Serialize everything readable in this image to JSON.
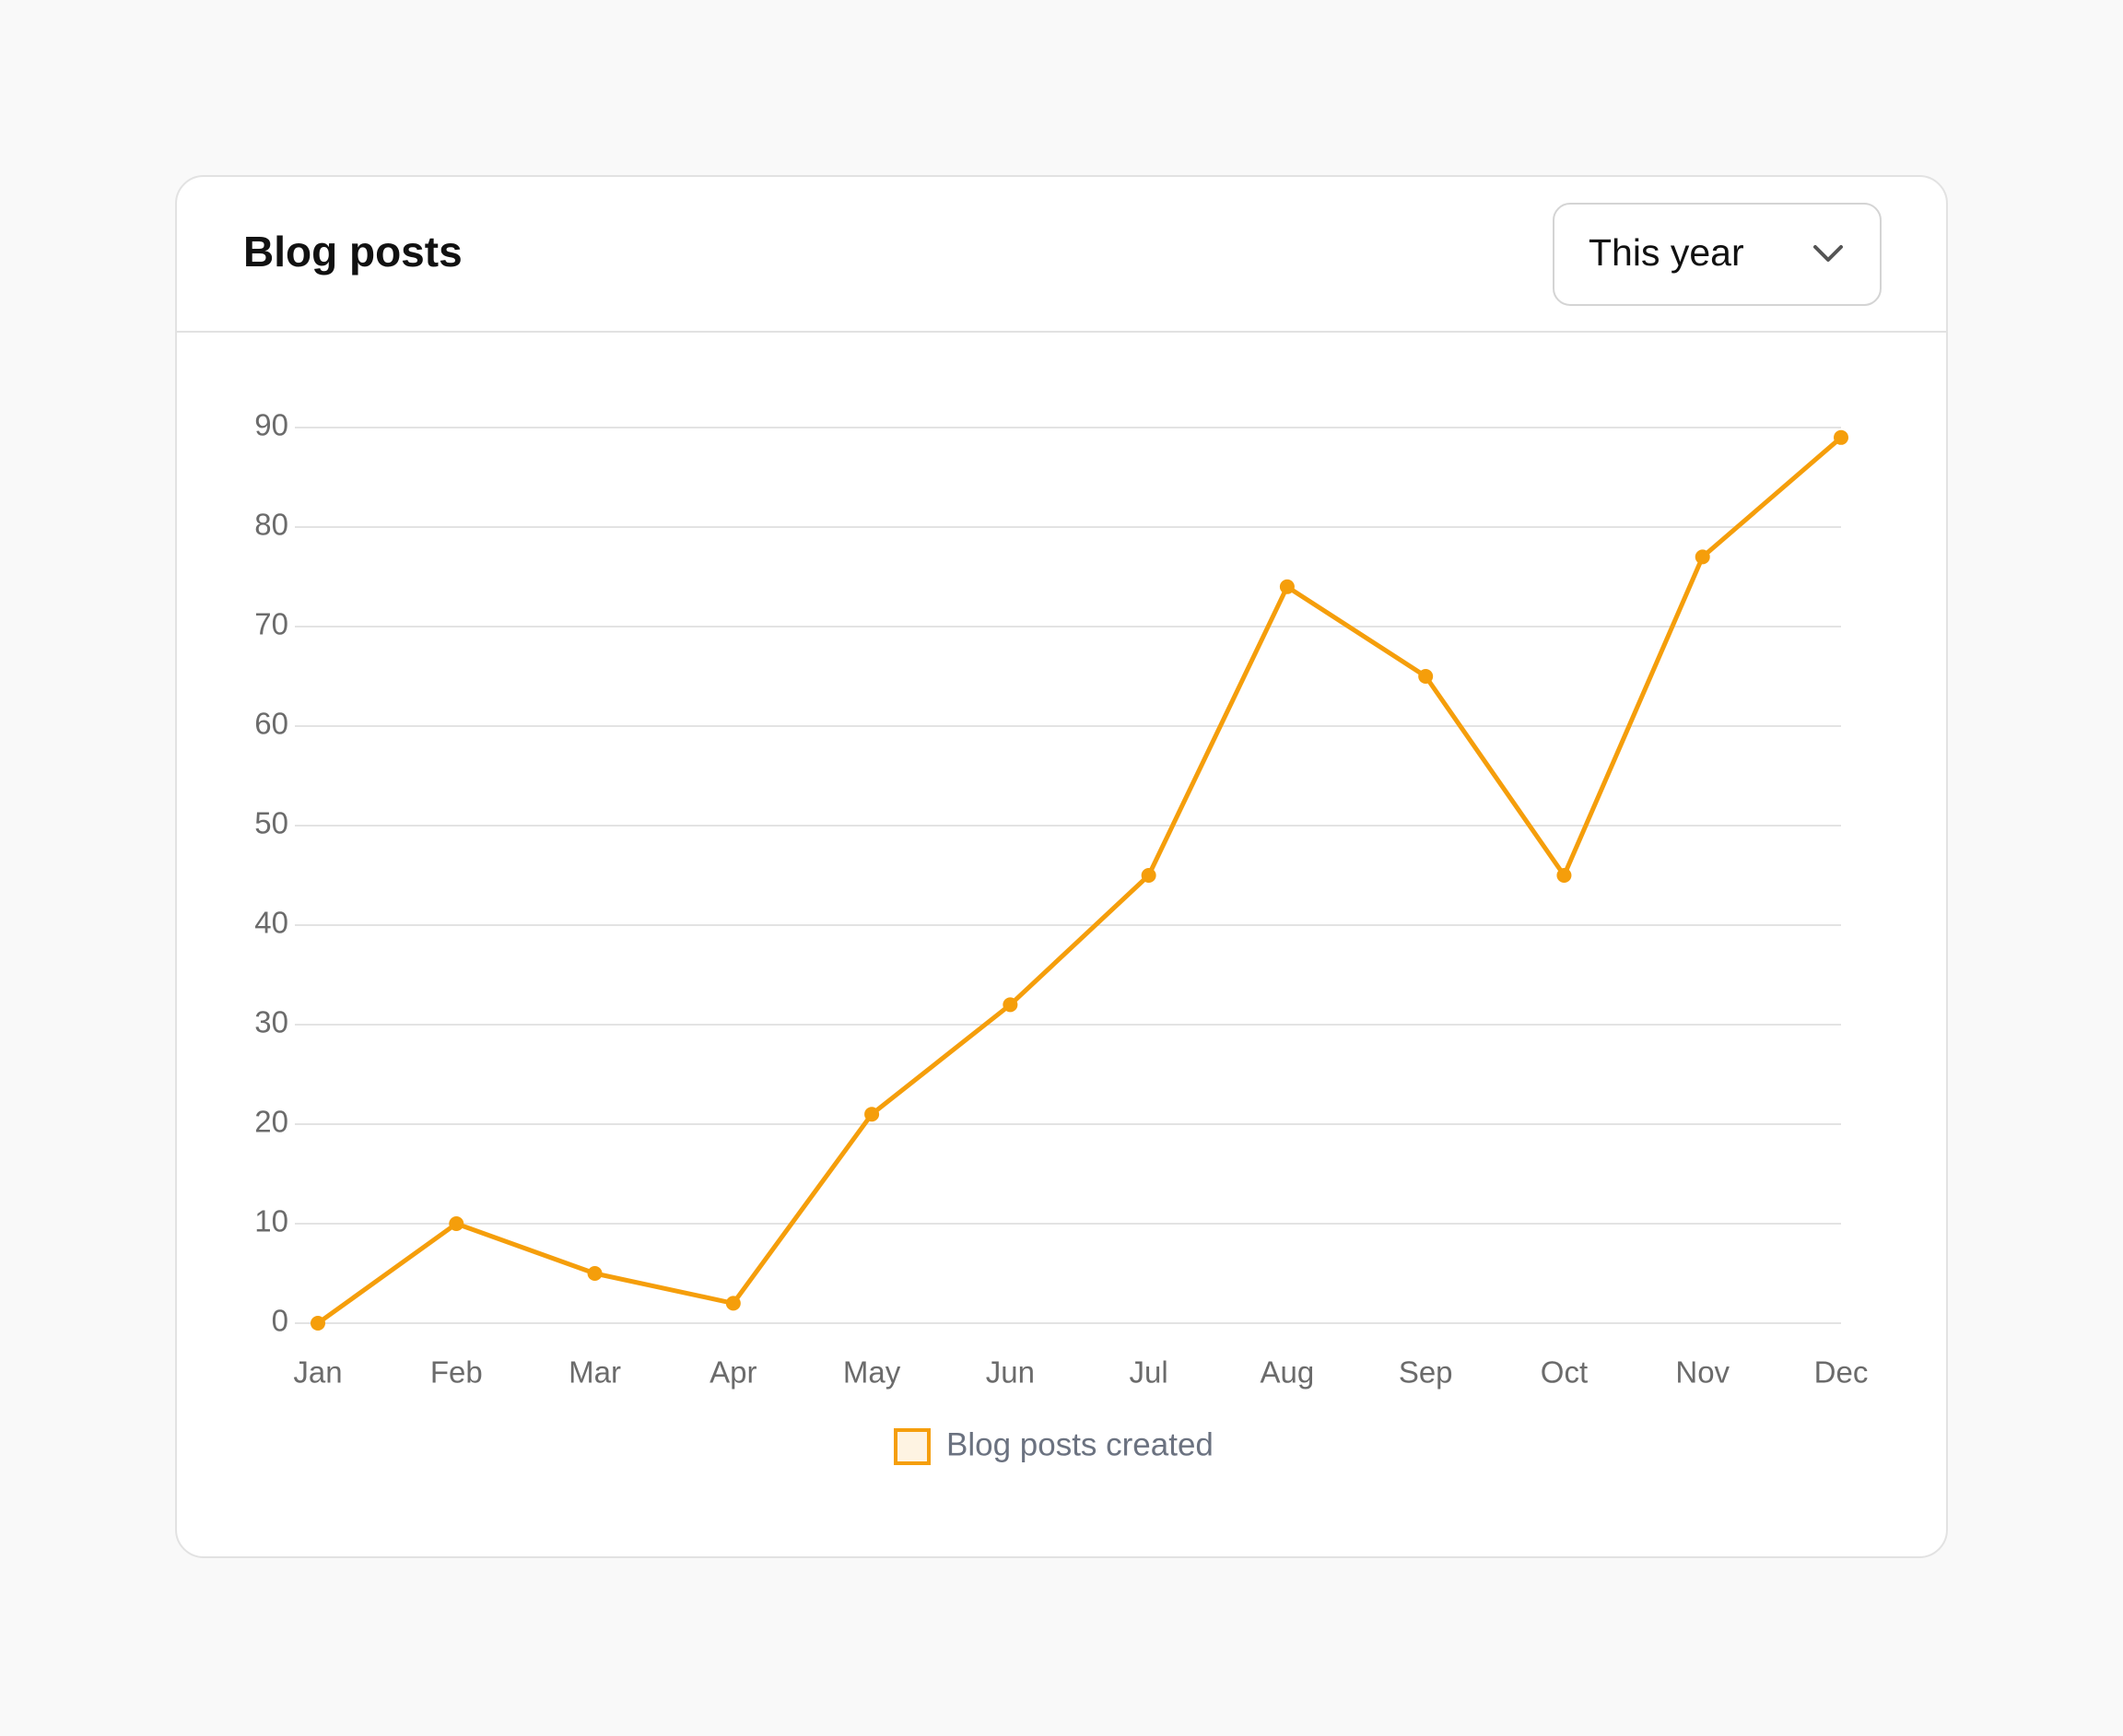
{
  "chart_data": {
    "type": "line",
    "title": "Blog posts",
    "categories": [
      "Jan",
      "Feb",
      "Mar",
      "Apr",
      "May",
      "Jun",
      "Jul",
      "Aug",
      "Sep",
      "Oct",
      "Nov",
      "Dec"
    ],
    "series": [
      {
        "name": "Blog posts created",
        "color": "#f59e0b",
        "values": [
          0,
          10,
          5,
          2,
          21,
          32,
          45,
          74,
          65,
          45,
          77,
          89
        ]
      }
    ],
    "ylim": [
      0,
      90
    ],
    "yticks": [
      0,
      10,
      20,
      30,
      40,
      50,
      60,
      70,
      80,
      90
    ],
    "grid": true,
    "legend": "bottom"
  },
  "controls": {
    "period": "This year"
  }
}
